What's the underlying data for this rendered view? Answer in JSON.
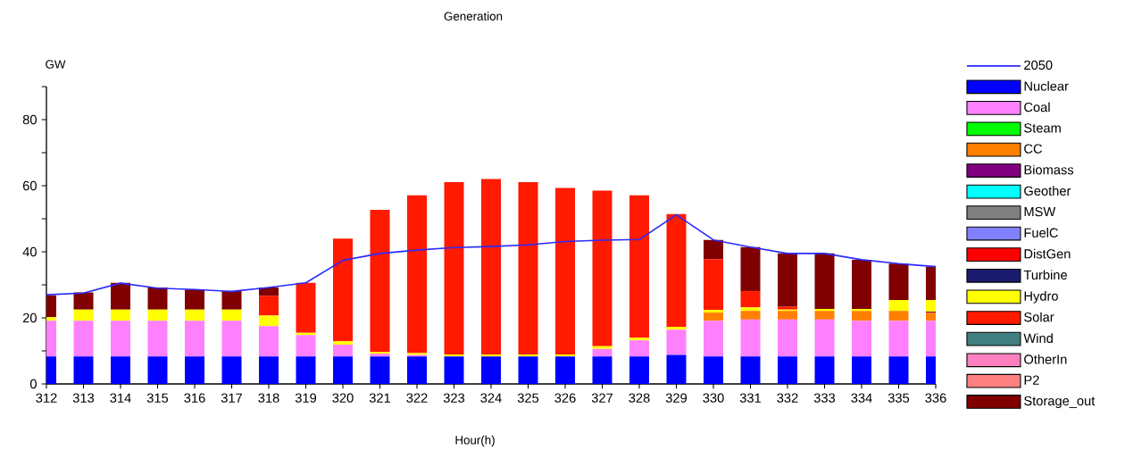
{
  "chart_data": {
    "type": "bar",
    "title": "Generation",
    "xlabel": "Hour(h)",
    "ylabel": "GW",
    "stacked": true,
    "legend": "right",
    "marker": "none",
    "categories": [
      "312",
      "313",
      "314",
      "315",
      "316",
      "317",
      "318",
      "319",
      "320",
      "321",
      "322",
      "323",
      "324",
      "325",
      "326",
      "327",
      "328",
      "329",
      "330",
      "331",
      "332",
      "333",
      "334",
      "335",
      "336"
    ],
    "ylim": [
      0,
      90
    ],
    "yticks": [
      0,
      {
        "value": 10,
        "label": null
      },
      20,
      {
        "value": 30,
        "label": null
      },
      40,
      {
        "value": 50,
        "label": null
      },
      60,
      {
        "value": 70,
        "label": null
      },
      80,
      {
        "value": 90,
        "label": null
      }
    ],
    "series": [
      {
        "name": "2050",
        "type": "line",
        "color": "#2a2aff",
        "values": [
          27,
          27.5,
          30.5,
          29,
          28.6,
          28,
          29.2,
          30.6,
          37.4,
          39.5,
          40.5,
          41.3,
          41.6,
          42.1,
          43.1,
          43.5,
          43.7,
          51.2,
          43.6,
          41.4,
          39.5,
          39.5,
          37.6,
          36.4,
          35.5
        ]
      },
      {
        "name": "Nuclear",
        "color": "#0000ff",
        "values": [
          8.3,
          8.3,
          8.3,
          8.3,
          8.3,
          8.3,
          8.3,
          8.3,
          8.3,
          8.3,
          8.3,
          8.3,
          8.3,
          8.3,
          8.3,
          8.3,
          8.3,
          8.8,
          8.3,
          8.3,
          8.3,
          8.3,
          8.3,
          8.3,
          8.3
        ]
      },
      {
        "name": "Coal",
        "color": "#ff80ff",
        "values": [
          10.8,
          10.8,
          10.8,
          10.8,
          10.8,
          10.8,
          9.2,
          6.5,
          3.6,
          0.9,
          0.5,
          0,
          0,
          0,
          0,
          2.3,
          4.9,
          7.6,
          10.8,
          11.2,
          11.2,
          11.2,
          10.8,
          10.8,
          10.8
        ]
      },
      {
        "name": "Steam",
        "color": "#00ff00",
        "values": [
          0,
          0,
          0,
          0,
          0,
          0,
          0,
          0,
          0,
          0,
          0,
          0,
          0,
          0,
          0,
          0,
          0,
          0,
          0,
          0,
          0,
          0,
          0,
          0,
          0
        ]
      },
      {
        "name": "CC",
        "color": "#ff8000",
        "values": [
          0,
          0,
          0,
          0,
          0,
          0,
          0,
          0,
          0,
          0,
          0,
          0,
          0,
          0,
          0,
          0,
          0,
          0,
          2.5,
          2.6,
          2.6,
          2.6,
          3.0,
          3.0,
          2.5
        ]
      },
      {
        "name": "Biomass",
        "color": "#800080",
        "values": [
          0,
          0,
          0,
          0,
          0,
          0,
          0,
          0,
          0,
          0,
          0,
          0,
          0,
          0,
          0,
          0,
          0,
          0,
          0,
          0,
          0,
          0,
          0,
          0,
          0.3
        ]
      },
      {
        "name": "Geother",
        "color": "#00ffff",
        "values": [
          0,
          0,
          0,
          0,
          0,
          0,
          0,
          0,
          0,
          0,
          0,
          0,
          0,
          0,
          0,
          0,
          0,
          0,
          0,
          0,
          0,
          0,
          0,
          0,
          0
        ]
      },
      {
        "name": "MSW",
        "color": "#808080",
        "values": [
          0,
          0,
          0,
          0,
          0,
          0,
          0,
          0,
          0,
          0,
          0,
          0,
          0,
          0,
          0,
          0,
          0,
          0,
          0,
          0,
          0,
          0,
          0,
          0,
          0
        ]
      },
      {
        "name": "FuelC",
        "color": "#8080ff",
        "values": [
          0,
          0,
          0,
          0,
          0,
          0,
          0,
          0,
          0,
          0,
          0,
          0,
          0,
          0,
          0,
          0,
          0,
          0,
          0,
          0,
          0,
          0,
          0,
          0,
          0
        ]
      },
      {
        "name": "DistGen",
        "color": "#ff0000",
        "values": [
          0,
          0,
          0,
          0,
          0,
          0,
          0,
          0,
          0,
          0,
          0,
          0,
          0,
          0,
          0,
          0,
          0,
          0,
          0,
          0,
          0,
          0,
          0,
          0,
          0
        ]
      },
      {
        "name": "Turbine",
        "color": "#1a1a6e",
        "values": [
          0,
          0,
          0,
          0,
          0,
          0,
          0,
          0,
          0,
          0,
          0,
          0,
          0,
          0,
          0,
          0,
          0,
          0,
          0,
          0,
          0,
          0,
          0,
          0,
          0
        ]
      },
      {
        "name": "Hydro",
        "color": "#ffff00",
        "values": [
          1.1,
          3.4,
          3.4,
          3.4,
          3.4,
          3.4,
          3.2,
          0.7,
          1.0,
          0.5,
          0.5,
          0.6,
          0.6,
          0.6,
          0.6,
          0.8,
          0.8,
          0.9,
          0.8,
          1.1,
          0.4,
          0.6,
          0.6,
          3.3,
          3.5
        ]
      },
      {
        "name": "Solar",
        "color": "#ff1a00",
        "values": [
          0,
          0,
          0,
          0,
          0,
          0,
          6.0,
          15.1,
          31.1,
          43.0,
          47.8,
          52.2,
          53.1,
          52.2,
          50.4,
          47.1,
          43.1,
          34.1,
          15.4,
          4.9,
          0.9,
          0,
          0,
          0,
          0
        ]
      },
      {
        "name": "Wind",
        "color": "#408080",
        "values": [
          0,
          0,
          0,
          0,
          0,
          0,
          0,
          0,
          0,
          0,
          0,
          0,
          0,
          0,
          0,
          0,
          0,
          0,
          0,
          0,
          0,
          0,
          0,
          0,
          0
        ]
      },
      {
        "name": "OtherIn",
        "color": "#ff80c0",
        "values": [
          0,
          0,
          0,
          0,
          0,
          0,
          0,
          0,
          0,
          0,
          0,
          0,
          0,
          0,
          0,
          0,
          0,
          0,
          0,
          0,
          0,
          0,
          0,
          0,
          0
        ]
      },
      {
        "name": "P2",
        "color": "#ff8080",
        "values": [
          0,
          0,
          0,
          0,
          0,
          0,
          0,
          0,
          0,
          0,
          0,
          0,
          0,
          0,
          0,
          0,
          0,
          0,
          0,
          0,
          0,
          0,
          0,
          0,
          0
        ]
      },
      {
        "name": "Storage_out",
        "color": "#800000",
        "values": [
          6.6,
          5.2,
          8.1,
          6.7,
          6.1,
          5.6,
          2.5,
          0,
          0,
          0,
          0,
          0,
          0,
          0,
          0,
          0,
          0,
          0,
          5.8,
          13.3,
          16.1,
          16.8,
          14.9,
          11.0,
          10.1
        ]
      }
    ]
  }
}
